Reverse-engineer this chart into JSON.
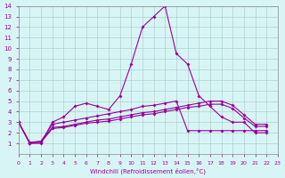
{
  "xlabel": "Windchill (Refroidissement éolien,°C)",
  "ylabel": "",
  "bg_color": "#d8f5f5",
  "grid_color": "#b0d0d0",
  "line_color": "#990099",
  "xlim": [
    0,
    23
  ],
  "ylim": [
    0,
    14
  ],
  "xticks": [
    0,
    1,
    2,
    3,
    4,
    5,
    6,
    7,
    8,
    9,
    10,
    11,
    12,
    13,
    14,
    15,
    16,
    17,
    18,
    19,
    20,
    21,
    22,
    23
  ],
  "yticks": [
    1,
    2,
    3,
    4,
    5,
    6,
    7,
    8,
    9,
    10,
    11,
    12,
    13,
    14
  ],
  "series": [
    [
      3.0,
      1.0,
      1.0,
      3.0,
      3.5,
      4.5,
      4.8,
      4.5,
      4.2,
      5.5,
      8.5,
      12.0,
      13.0,
      14.0,
      9.5,
      8.5,
      5.5,
      4.5,
      3.5,
      3.0,
      3.0,
      2.0,
      2.0
    ],
    [
      3.0,
      1.1,
      1.2,
      2.8,
      3.0,
      3.2,
      3.4,
      3.6,
      3.8,
      4.0,
      4.2,
      4.5,
      4.6,
      4.8,
      5.0,
      2.2,
      2.2,
      2.2,
      2.2,
      2.2,
      2.2,
      2.2,
      2.2
    ],
    [
      3.0,
      1.0,
      1.2,
      2.5,
      2.6,
      2.8,
      3.0,
      3.2,
      3.3,
      3.5,
      3.7,
      3.9,
      4.0,
      4.2,
      4.4,
      4.6,
      4.8,
      5.0,
      5.0,
      4.6,
      3.7,
      2.8,
      2.8
    ],
    [
      3.0,
      1.0,
      1.1,
      2.4,
      2.5,
      2.7,
      2.9,
      3.0,
      3.1,
      3.3,
      3.5,
      3.7,
      3.8,
      4.0,
      4.2,
      4.4,
      4.5,
      4.7,
      4.7,
      4.3,
      3.4,
      2.6,
      2.6
    ]
  ],
  "x_values": [
    0,
    1,
    2,
    3,
    4,
    5,
    6,
    7,
    8,
    9,
    10,
    11,
    12,
    13,
    14,
    15,
    16,
    17,
    18,
    19,
    20,
    21,
    22
  ]
}
